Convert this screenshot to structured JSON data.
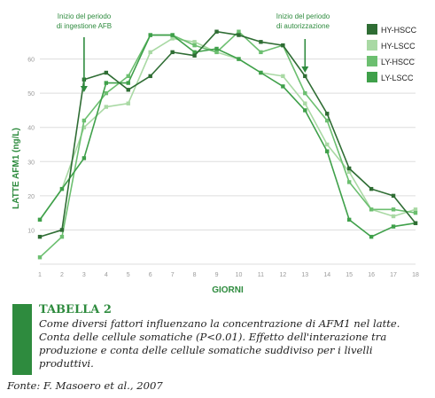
{
  "colors": {
    "HY-HSCC": "#2f6d34",
    "HY-LSCC": "#a9d9a4",
    "LY-HSCC": "#6cbf70",
    "LY-LSCC": "#3fa04a",
    "axis_text": "#9a9a9a",
    "accent": "#2e8b3e",
    "grid": "#dddddd"
  },
  "chart_data": {
    "type": "line",
    "xlabel": "GIORNI",
    "ylabel": "LATTE AFM1 (ng/L)",
    "x": [
      1,
      2,
      3,
      4,
      5,
      6,
      7,
      8,
      9,
      10,
      11,
      12,
      13,
      14,
      15,
      16,
      17,
      18
    ],
    "xlim": [
      1,
      18
    ],
    "ylim": [
      0,
      70
    ],
    "yticks": [
      0,
      10,
      20,
      30,
      40,
      50,
      60
    ],
    "grid": "horizontal",
    "legend_position": "top-right",
    "series": [
      {
        "name": "HY-HSCC",
        "values": [
          8,
          10,
          54,
          56,
          51,
          55,
          62,
          61,
          68,
          67,
          65,
          64,
          55,
          44,
          28,
          22,
          20,
          12
        ]
      },
      {
        "name": "HY-LSCC",
        "values": [
          13,
          22,
          40,
          46,
          47,
          62,
          66,
          65,
          62,
          60,
          56,
          55,
          47,
          35,
          27,
          16,
          14,
          16
        ]
      },
      {
        "name": "LY-HSCC",
        "values": [
          2,
          8,
          42,
          50,
          55,
          67,
          67,
          64,
          62,
          68,
          62,
          64,
          50,
          42,
          24,
          16,
          16,
          15
        ]
      },
      {
        "name": "LY-LSCC",
        "values": [
          13,
          22,
          31,
          53,
          53,
          67,
          67,
          62,
          63,
          60,
          56,
          52,
          45,
          33,
          13,
          8,
          11,
          12
        ]
      }
    ],
    "annotations": [
      {
        "text": "Inizio del periodo\ndi ingestione AFB",
        "x": 3
      },
      {
        "text": "Inizio del periodo\ndi autorizzazione",
        "x": 13
      }
    ]
  },
  "caption": {
    "title": "TABELLA 2",
    "text": "Come diversi fattori influenzano la concentrazione di AFM1 nel latte. Conta delle cellule somatiche (P<0.01). Effetto dell'interazione tra produzione e conta delle cellule somatiche suddiviso per i livelli produttivi."
  },
  "source": "Fonte: F. Masoero et al., 2007"
}
